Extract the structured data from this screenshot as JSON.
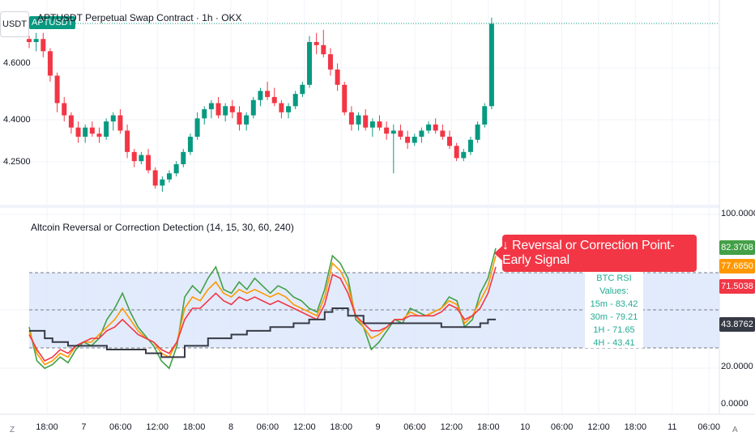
{
  "header": {
    "unit": "USDT",
    "symbol_badge": "APTUSDT",
    "title": "APTUSDT Perpetual Swap Contract · 1h · OKX"
  },
  "indicator": {
    "title": "Altcoin Reversal or Correction Detection (14, 15, 30, 60, 240)",
    "signal_text": "↓ Reversal or Correction Point-Early Signal",
    "rsi_box": {
      "heading": "BTC RSI Values:",
      "rows": [
        "15m - 83.42",
        "30m - 79.21",
        "1H - 71.65",
        "4H - 43.41"
      ]
    }
  },
  "price_axis": {
    "labels": [
      "4.6000",
      "4.4000",
      "4.2500"
    ]
  },
  "indicator_axis": {
    "labels": [
      "100.0000",
      "20.0000",
      "0.0000"
    ],
    "tags": [
      {
        "value": "82.3708",
        "color": "#43a047"
      },
      {
        "value": "77.6650",
        "color": "#ff9800"
      },
      {
        "value": "71.5038",
        "color": "#f23645"
      },
      {
        "value": "43.8762",
        "color": "#363a45"
      }
    ]
  },
  "time_axis": {
    "labels": [
      "18:00",
      "7",
      "06:00",
      "12:00",
      "18:00",
      "8",
      "06:00",
      "12:00",
      "18:00",
      "9",
      "06:00",
      "12:00",
      "18:00",
      "10",
      "06:00",
      "12:00",
      "18:00",
      "11",
      "06:00"
    ],
    "left_corner": "Z",
    "right_corner": "A"
  },
  "colors": {
    "up": "#089981",
    "down": "#f23645",
    "rsi15": "#43a047",
    "rsi30": "#ff9800",
    "rsi1h": "#f23645",
    "rsi4h": "#363a45",
    "zone": "#dbe6fb"
  },
  "chart_data": [
    {
      "type": "candlestick",
      "title": "APTUSDT Perpetual Swap Contract · 1h · OKX",
      "ylabel": "USDT",
      "ylim": [
        4.1,
        4.72
      ],
      "candles": [
        [
          4.64,
          4.65,
          4.61,
          4.63
        ],
        [
          4.63,
          4.66,
          4.6,
          4.64
        ],
        [
          4.64,
          4.66,
          4.58,
          4.6
        ],
        [
          4.6,
          4.61,
          4.5,
          4.52
        ],
        [
          4.52,
          4.53,
          4.4,
          4.43
        ],
        [
          4.43,
          4.45,
          4.37,
          4.39
        ],
        [
          4.39,
          4.4,
          4.33,
          4.35
        ],
        [
          4.35,
          4.37,
          4.3,
          4.32
        ],
        [
          4.32,
          4.36,
          4.3,
          4.35
        ],
        [
          4.35,
          4.37,
          4.32,
          4.33
        ],
        [
          4.33,
          4.35,
          4.3,
          4.32
        ],
        [
          4.32,
          4.38,
          4.31,
          4.37
        ],
        [
          4.37,
          4.4,
          4.34,
          4.39
        ],
        [
          4.39,
          4.41,
          4.33,
          4.34
        ],
        [
          4.34,
          4.36,
          4.25,
          4.27
        ],
        [
          4.27,
          4.28,
          4.22,
          4.24
        ],
        [
          4.24,
          4.27,
          4.23,
          4.26
        ],
        [
          4.26,
          4.28,
          4.2,
          4.21
        ],
        [
          4.21,
          4.22,
          4.15,
          4.16
        ],
        [
          4.16,
          4.19,
          4.14,
          4.18
        ],
        [
          4.18,
          4.21,
          4.17,
          4.2
        ],
        [
          4.2,
          4.24,
          4.19,
          4.23
        ],
        [
          4.23,
          4.28,
          4.22,
          4.27
        ],
        [
          4.27,
          4.33,
          4.26,
          4.32
        ],
        [
          4.32,
          4.4,
          4.31,
          4.38
        ],
        [
          4.38,
          4.42,
          4.36,
          4.41
        ],
        [
          4.41,
          4.44,
          4.38,
          4.43
        ],
        [
          4.43,
          4.45,
          4.38,
          4.39
        ],
        [
          4.39,
          4.43,
          4.37,
          4.42
        ],
        [
          4.42,
          4.44,
          4.38,
          4.4
        ],
        [
          4.4,
          4.42,
          4.34,
          4.36
        ],
        [
          4.36,
          4.4,
          4.34,
          4.39
        ],
        [
          4.39,
          4.45,
          4.38,
          4.44
        ],
        [
          4.44,
          4.48,
          4.42,
          4.47
        ],
        [
          4.47,
          4.5,
          4.44,
          4.45
        ],
        [
          4.45,
          4.48,
          4.42,
          4.43
        ],
        [
          4.43,
          4.44,
          4.38,
          4.4
        ],
        [
          4.4,
          4.43,
          4.38,
          4.42
        ],
        [
          4.42,
          4.47,
          4.41,
          4.46
        ],
        [
          4.46,
          4.5,
          4.45,
          4.49
        ],
        [
          4.49,
          4.65,
          4.48,
          4.63
        ],
        [
          4.63,
          4.66,
          4.59,
          4.62
        ],
        [
          4.62,
          4.67,
          4.58,
          4.59
        ],
        [
          4.59,
          4.61,
          4.52,
          4.54
        ],
        [
          4.54,
          4.56,
          4.47,
          4.49
        ],
        [
          4.49,
          4.5,
          4.39,
          4.4
        ],
        [
          4.4,
          4.42,
          4.34,
          4.36
        ],
        [
          4.36,
          4.4,
          4.34,
          4.39
        ],
        [
          4.39,
          4.41,
          4.34,
          4.35
        ],
        [
          4.35,
          4.38,
          4.32,
          4.37
        ],
        [
          4.37,
          4.39,
          4.34,
          4.35
        ],
        [
          4.35,
          4.37,
          4.31,
          4.33
        ],
        [
          4.33,
          4.36,
          4.2,
          4.34
        ],
        [
          4.34,
          4.36,
          4.31,
          4.32
        ],
        [
          4.32,
          4.34,
          4.28,
          4.3
        ],
        [
          4.3,
          4.33,
          4.29,
          4.32
        ],
        [
          4.32,
          4.35,
          4.3,
          4.34
        ],
        [
          4.34,
          4.37,
          4.33,
          4.36
        ],
        [
          4.36,
          4.38,
          4.33,
          4.34
        ],
        [
          4.34,
          4.36,
          4.31,
          4.32
        ],
        [
          4.32,
          4.34,
          4.28,
          4.29
        ],
        [
          4.29,
          4.3,
          4.24,
          4.25
        ],
        [
          4.25,
          4.28,
          4.24,
          4.27
        ],
        [
          4.27,
          4.32,
          4.26,
          4.31
        ],
        [
          4.31,
          4.37,
          4.3,
          4.36
        ],
        [
          4.36,
          4.43,
          4.35,
          4.42
        ],
        [
          4.42,
          4.71,
          4.41,
          4.69
        ]
      ]
    },
    {
      "type": "line",
      "title": "Altcoin Reversal or Correction Detection (14, 15, 30, 60, 240)",
      "ylim": [
        0,
        100
      ],
      "bands": [
        30,
        50,
        70
      ],
      "series": [
        {
          "name": "15m",
          "values": [
            40,
            22,
            18,
            20,
            24,
            21,
            28,
            32,
            30,
            34,
            44,
            50,
            58,
            48,
            40,
            35,
            30,
            22,
            18,
            30,
            56,
            62,
            58,
            66,
            72,
            60,
            58,
            64,
            60,
            66,
            62,
            58,
            62,
            60,
            56,
            54,
            50,
            48,
            60,
            78,
            74,
            66,
            44,
            40,
            28,
            32,
            38,
            44,
            42,
            50,
            48,
            46,
            48,
            50,
            56,
            54,
            40,
            44,
            58,
            66,
            82
          ]
        },
        {
          "name": "30m",
          "values": [
            38,
            26,
            20,
            22,
            26,
            24,
            30,
            32,
            32,
            36,
            40,
            44,
            50,
            44,
            38,
            34,
            32,
            26,
            24,
            32,
            50,
            56,
            54,
            60,
            64,
            58,
            56,
            60,
            58,
            60,
            58,
            56,
            58,
            56,
            52,
            50,
            48,
            46,
            56,
            74,
            70,
            62,
            46,
            40,
            34,
            36,
            40,
            44,
            44,
            48,
            46,
            46,
            48,
            50,
            54,
            52,
            42,
            46,
            54,
            62,
            78
          ]
        },
        {
          "name": "1H",
          "values": [
            36,
            28,
            22,
            24,
            28,
            26,
            30,
            32,
            34,
            34,
            38,
            40,
            44,
            40,
            36,
            34,
            32,
            28,
            26,
            32,
            44,
            50,
            50,
            54,
            58,
            54,
            52,
            56,
            54,
            56,
            54,
            52,
            54,
            52,
            50,
            48,
            46,
            44,
            52,
            68,
            66,
            58,
            46,
            42,
            38,
            38,
            40,
            44,
            44,
            46,
            46,
            46,
            46,
            48,
            52,
            50,
            44,
            46,
            50,
            58,
            72
          ]
        },
        {
          "name": "4H",
          "values": [
            38,
            38,
            34,
            32,
            32,
            30,
            30,
            30,
            30,
            30,
            28,
            28,
            28,
            28,
            28,
            26,
            26,
            24,
            24,
            24,
            30,
            30,
            30,
            34,
            34,
            34,
            36,
            36,
            38,
            38,
            38,
            40,
            40,
            40,
            42,
            42,
            44,
            44,
            48,
            50,
            50,
            46,
            46,
            42,
            42,
            42,
            42,
            42,
            42,
            42,
            42,
            42,
            42,
            40,
            40,
            40,
            40,
            40,
            42,
            44,
            44
          ]
        }
      ]
    }
  ]
}
